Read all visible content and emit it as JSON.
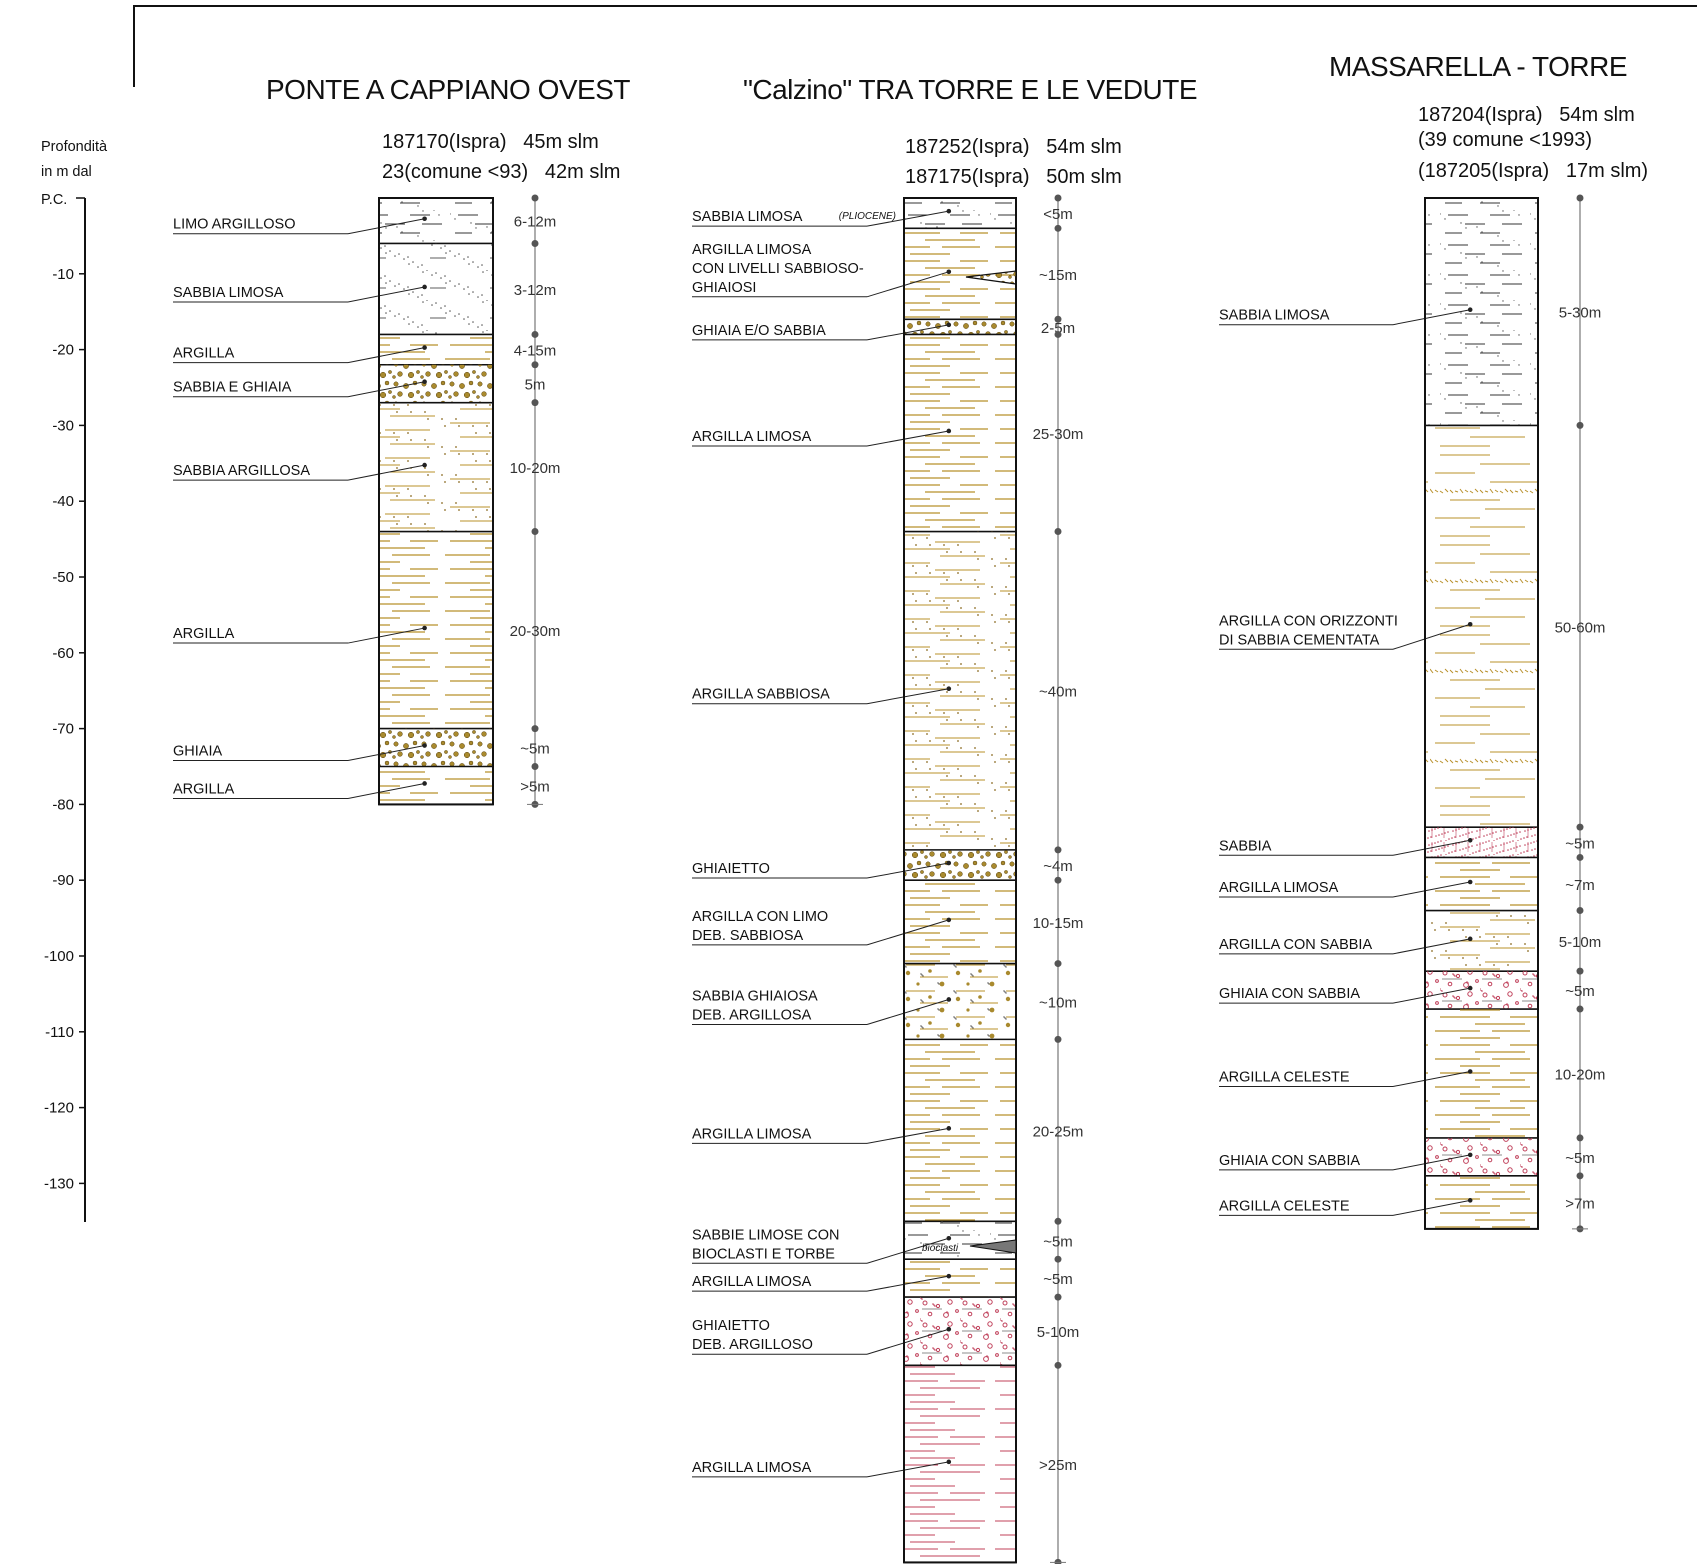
{
  "depth_axis": {
    "label_lines": [
      "Profondità",
      "in m dal",
      "P.C."
    ],
    "ticks": [
      "-10",
      "-20",
      "-30",
      "-40",
      "-50",
      "-60",
      "-70",
      "-80",
      "-90",
      "-100",
      "-110",
      "-120",
      "-130"
    ]
  },
  "columns": [
    {
      "title": "PONTE A CAPPIANO OVEST",
      "header_lines": [
        "187170(Ispra)   45m slm",
        "23(comune <93)   42m slm"
      ],
      "layers": [
        {
          "name": "LIMO ARGILLOSO",
          "top": 0,
          "bottom": 6,
          "thickness": "6-12m",
          "pattern": "silt"
        },
        {
          "name": "SABBIA LIMOSA",
          "top": 6,
          "bottom": 18,
          "thickness": "3-12m",
          "pattern": "sand"
        },
        {
          "name": "ARGILLA",
          "top": 18,
          "bottom": 22,
          "thickness": "4-15m",
          "pattern": "clay"
        },
        {
          "name": "SABBIA E GHIAIA",
          "top": 22,
          "bottom": 27,
          "thickness": "5m",
          "pattern": "gravel"
        },
        {
          "name": "SABBIA ARGILLOSA",
          "top": 27,
          "bottom": 44,
          "thickness": "10-20m",
          "pattern": "sandclay"
        },
        {
          "name": "ARGILLA",
          "top": 44,
          "bottom": 70,
          "thickness": "20-30m",
          "pattern": "clay"
        },
        {
          "name": "GHIAIA",
          "top": 70,
          "bottom": 75,
          "thickness": "~5m",
          "pattern": "gravel"
        },
        {
          "name": "ARGILLA",
          "top": 75,
          "bottom": 80,
          "thickness": ">5m",
          "pattern": "clay"
        }
      ]
    },
    {
      "title": "\"Calzino\" TRA TORRE E LE VEDUTE",
      "header_lines": [
        "187252(Ispra)   54m slm",
        "187175(Ispra)   50m slm"
      ],
      "annotations": [
        "(PLIOCENE)",
        "bioclasti"
      ],
      "layers": [
        {
          "name": "SABBIA LIMOSA",
          "top": 0,
          "bottom": 4,
          "thickness": "<5m",
          "pattern": "silt"
        },
        {
          "name": "ARGILLA LIMOSA CON LIVELLI SABBIOSO-GHIAIOSI",
          "label_lines": [
            "ARGILLA LIMOSA",
            "CON LIVELLI SABBIOSO-",
            "GHIAIOSI"
          ],
          "top": 4,
          "bottom": 16,
          "thickness": "~15m",
          "pattern": "clay"
        },
        {
          "name": "GHIAIA E/O SABBIA",
          "top": 16,
          "bottom": 18,
          "thickness": "2-5m",
          "pattern": "gravel"
        },
        {
          "name": "ARGILLA LIMOSA",
          "top": 18,
          "bottom": 44,
          "thickness": "25-30m",
          "pattern": "clay"
        },
        {
          "name": "ARGILLA SABBIOSA",
          "top": 44,
          "bottom": 86,
          "thickness": "~40m",
          "pattern": "sandclay"
        },
        {
          "name": "GHIAIETTO",
          "top": 86,
          "bottom": 90,
          "thickness": "~4m",
          "pattern": "gravel"
        },
        {
          "name": "ARGILLA CON LIMO DEB. SABBIOSA",
          "label_lines": [
            "ARGILLA CON LIMO",
            "DEB. SABBIOSA"
          ],
          "top": 90,
          "bottom": 101,
          "thickness": "10-15m",
          "pattern": "clay"
        },
        {
          "name": "SABBIA GHIAIOSA DEB. ARGILLOSA",
          "label_lines": [
            "SABBIA GHIAIOSA",
            "DEB. ARGILLOSA"
          ],
          "top": 101,
          "bottom": 111,
          "thickness": "~10m",
          "pattern": "sandgravel"
        },
        {
          "name": "ARGILLA LIMOSA",
          "top": 111,
          "bottom": 135,
          "thickness": "20-25m",
          "pattern": "clay"
        },
        {
          "name": "SABBIE LIMOSE CON BIOCLASTI E TORBE",
          "label_lines": [
            "SABBIE LIMOSE CON",
            "BIOCLASTI E TORBE"
          ],
          "top": 135,
          "bottom": 140,
          "thickness": "~5m",
          "pattern": "silt"
        },
        {
          "name": "ARGILLA LIMOSA",
          "top": 140,
          "bottom": 145,
          "thickness": "~5m",
          "pattern": "clay"
        },
        {
          "name": "GHIAIETTO DEB. ARGILLOSO",
          "label_lines": [
            "GHIAIETTO",
            "DEB. ARGILLOSO"
          ],
          "top": 145,
          "bottom": 154,
          "thickness": "5-10m",
          "pattern": "redgravel"
        },
        {
          "name": "ARGILLA LIMOSA",
          "top": 154,
          "bottom": 180,
          "thickness": ">25m",
          "pattern": "redclay"
        }
      ]
    },
    {
      "title": "MASSARELLA - TORRE",
      "header_lines": [
        "187204(Ispra)   54m slm",
        "(39 comune <1993)",
        "(187205(Ispra)   17m slm)"
      ],
      "layers": [
        {
          "name": "SABBIA LIMOSA",
          "top": 0,
          "bottom": 30,
          "thickness": "5-30m",
          "pattern": "silt"
        },
        {
          "name": "ARGILLA CON ORIZZONTI DI SABBIA CEMENTATA",
          "label_lines": [
            "ARGILLA CON ORIZZONTI",
            "DI SABBIA CEMENTATA"
          ],
          "top": 30,
          "bottom": 83,
          "thickness": "50-60m",
          "pattern": "cemented"
        },
        {
          "name": "SABBIA",
          "top": 83,
          "bottom": 87,
          "thickness": "~5m",
          "pattern": "redsand"
        },
        {
          "name": "ARGILLA LIMOSA",
          "top": 87,
          "bottom": 94,
          "thickness": "~7m",
          "pattern": "clay"
        },
        {
          "name": "ARGILLA CON SABBIA",
          "top": 94,
          "bottom": 102,
          "thickness": "5-10m",
          "pattern": "sandclay"
        },
        {
          "name": "GHIAIA CON SABBIA",
          "top": 102,
          "bottom": 107,
          "thickness": "~5m",
          "pattern": "redgravel"
        },
        {
          "name": "ARGILLA CELESTE",
          "top": 107,
          "bottom": 124,
          "thickness": "10-20m",
          "pattern": "clay"
        },
        {
          "name": "GHIAIA CON SABBIA",
          "top": 124,
          "bottom": 129,
          "thickness": "~5m",
          "pattern": "redgravel"
        },
        {
          "name": "ARGILLA CELESTE",
          "top": 129,
          "bottom": 136,
          "thickness": ">7m",
          "pattern": "clay"
        }
      ]
    }
  ],
  "colors": {
    "clay": "#b8902a",
    "red": "#c0405a",
    "gravel": "#a98a2e",
    "dark": "#111111",
    "silt": "#333333"
  }
}
